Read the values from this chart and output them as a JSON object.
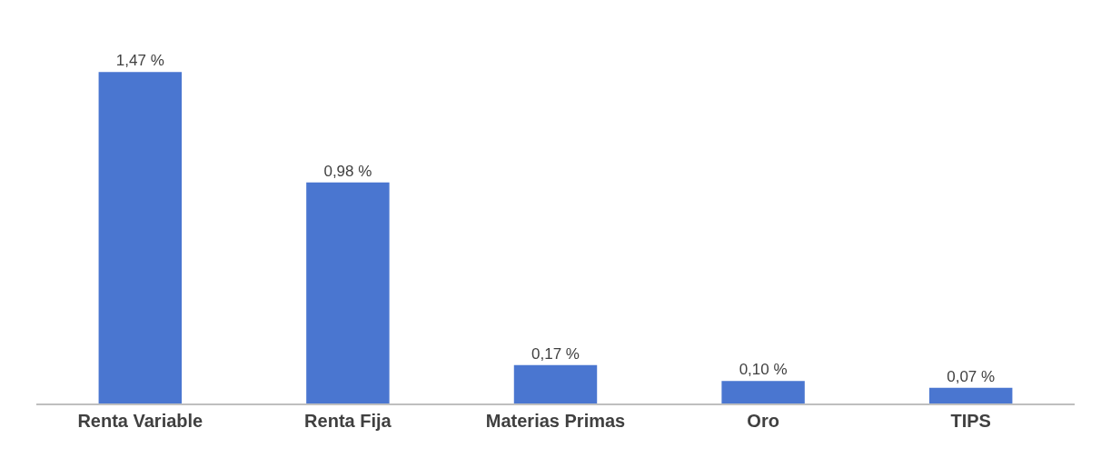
{
  "chart_data": {
    "type": "bar",
    "categories": [
      "Renta Variable",
      "Renta Fija",
      "Materias Primas",
      "Oro",
      "TIPS"
    ],
    "values": [
      1.47,
      0.98,
      0.17,
      0.1,
      0.07
    ],
    "value_labels": [
      "1,47 %",
      "0,98 %",
      "0,17 %",
      "0,10 %",
      "0,07 %"
    ],
    "color": "#4a76d0"
  }
}
